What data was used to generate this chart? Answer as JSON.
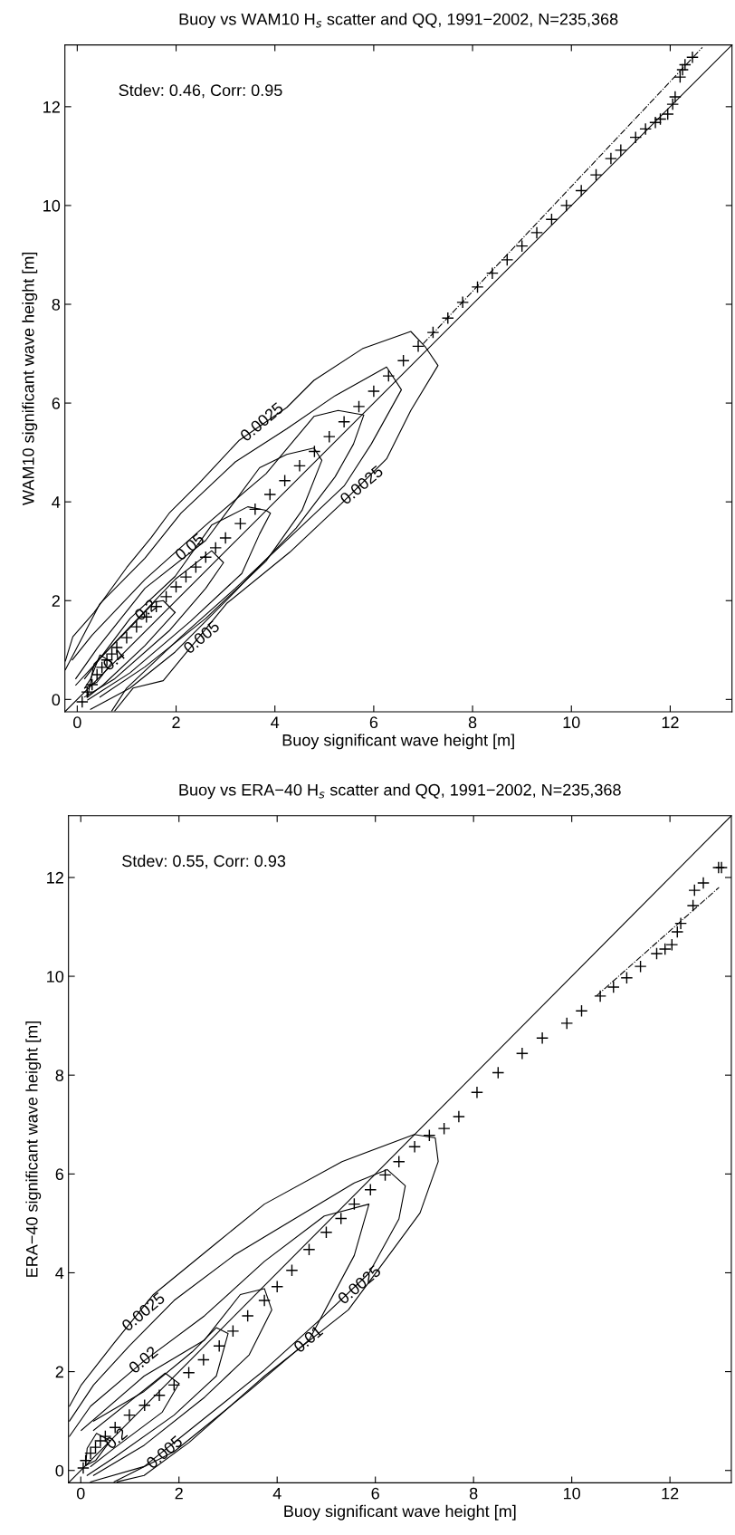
{
  "chart_data": [
    {
      "type": "scatter",
      "title": "Buoy vs WAM10 H$_{s}$ scatter and QQ, 1991−2002, N=235,368",
      "xlabel": "Buoy significant wave height [m]",
      "ylabel": "WAM10 significant wave height [m]",
      "xlim": [
        -0.25,
        13.25
      ],
      "ylim": [
        -0.25,
        13.25
      ],
      "xticks": [
        0,
        2,
        4,
        6,
        8,
        10,
        12
      ],
      "yticks": [
        0,
        2,
        4,
        6,
        8,
        10,
        12
      ],
      "grid": false,
      "legend": false,
      "annotations": [
        "Stdev: 0.46, Corr: 0.95",
        {
          "text": "0.0025",
          "x": 3.75,
          "y": 5.6
        },
        {
          "text": "0.0025",
          "x": 5.77,
          "y": 4.32
        },
        {
          "text": "0.05",
          "x": 2.29,
          "y": 3.07
        },
        {
          "text": "0.2",
          "x": 1.4,
          "y": 1.79
        },
        {
          "text": "0.4",
          "x": 0.76,
          "y": 0.78
        },
        {
          "text": "0.005",
          "x": 2.53,
          "y": 1.24
        }
      ],
      "series": [
        {
          "type": "line",
          "color": "#000000",
          "line_style": "solid",
          "x": [
            -0.25,
            13.25
          ],
          "values": [
            -0.25,
            13.25
          ]
        },
        {
          "type": "line",
          "color": "#000000",
          "line_style": "dashdot",
          "x": [
            7.0,
            12.65
          ],
          "values": [
            7.2,
            13.2
          ]
        },
        {
          "type": "line",
          "color": "#000000",
          "line_style": "solid",
          "x": [
            -0.24,
            -0.09,
            0.34,
            1.0,
            1.5,
            1.86,
            2.47,
            3.27,
            4.24,
            4.79,
            5.77,
            6.75,
            7.05,
            7.3,
            6.75,
            6.26,
            5.34,
            4.3,
            3.02,
            1.74,
            1.13,
            0.76
          ],
          "values": [
            0.78,
            1.27,
            1.76,
            2.67,
            3.28,
            3.77,
            4.38,
            5.24,
            5.91,
            6.46,
            7.1,
            7.45,
            7.13,
            6.76,
            5.85,
            4.87,
            3.96,
            2.98,
            1.94,
            0.38,
            0.23,
            -0.23
          ]
        },
        {
          "type": "line",
          "color": "#000000",
          "line_style": "solid",
          "x": [
            -0.24,
            0.46,
            1.37,
            2.1,
            3.2,
            4.24,
            5.22,
            6.26,
            6.56,
            5.95,
            5.4,
            4.49,
            3.2,
            2.1,
            1.0,
            0.7
          ],
          "values": [
            0.6,
            1.94,
            2.86,
            3.77,
            4.81,
            5.48,
            6.15,
            6.73,
            6.27,
            5.17,
            4.32,
            3.46,
            2.25,
            1.27,
            0.23,
            -0.23
          ]
        },
        {
          "type": "line",
          "color": "#000000",
          "line_style": "solid",
          "x": [
            -0.1,
            0.3,
            1.37,
            2.6,
            3.82,
            4.79,
            5.28,
            5.8,
            5.59,
            5.22,
            4.43,
            3.2,
            1.98,
            1.07,
            0.27
          ],
          "values": [
            0.8,
            1.3,
            2.43,
            3.53,
            4.57,
            5.73,
            5.85,
            5.76,
            5.17,
            4.51,
            3.47,
            2.19,
            0.96,
            0.23,
            -0.2
          ]
        },
        {
          "type": "line",
          "color": "#000000",
          "line_style": "solid",
          "x": [
            -0.03,
            0.4,
            1.37,
            2.6,
            3.69,
            4.24,
            4.79,
            4.95,
            4.55,
            3.82,
            2.6,
            1.37,
            0.46
          ],
          "values": [
            0.42,
            1.03,
            2.25,
            3.22,
            4.69,
            4.96,
            5.09,
            4.84,
            3.83,
            2.8,
            1.64,
            0.66,
            0.05
          ]
        },
        {
          "type": "line",
          "color": "#000000",
          "line_style": "solid",
          "x": [
            0.15,
            1.07,
            1.98,
            2.72,
            3.45,
            3.82,
            3.91,
            3.69,
            3.33,
            2.29,
            1.07,
            0.21
          ],
          "values": [
            0.42,
            1.64,
            2.49,
            3.53,
            3.9,
            3.83,
            3.77,
            3.35,
            2.55,
            1.58,
            0.54,
            -0.01
          ]
        },
        {
          "type": "line",
          "color": "#000000",
          "line_style": "solid",
          "x": [
            -0.03,
            0.76,
            1.98,
            2.72,
            2.96,
            2.6,
            1.86,
            0.76,
            0.15
          ],
          "values": [
            0.29,
            1.15,
            2.43,
            3.01,
            2.77,
            2.25,
            1.39,
            0.42,
            0.05
          ]
        },
        {
          "type": "line",
          "color": "#000000",
          "line_style": "solid",
          "x": [
            0.21,
            0.34,
            0.95,
            1.56,
            1.74,
            1.98
          ],
          "values": [
            0.05,
            0.72,
            1.33,
            1.97,
            2.0,
            1.76
          ]
        },
        {
          "type": "line",
          "color": "#000000",
          "line_style": "solid",
          "x": [
            0.21,
            0.52,
            1.37,
            1.98
          ],
          "values": [
            0.05,
            0.29,
            1.09,
            1.76
          ]
        },
        {
          "type": "line",
          "color": "#000000",
          "line_style": "solid",
          "x": [
            0.15,
            0.27,
            0.46,
            0.7
          ],
          "values": [
            0.23,
            0.42,
            0.9,
            0.75
          ]
        },
        {
          "type": "line",
          "color": "#000000",
          "line_style": "solid",
          "x": [
            0.15,
            0.4,
            0.7
          ],
          "values": [
            0.23,
            0.35,
            0.75
          ]
        },
        {
          "color": "#000000",
          "marker": "cross",
          "x": [
            0.1,
            0.2,
            0.3,
            0.4,
            0.5,
            0.6,
            0.7,
            0.8,
            1.0,
            1.2,
            1.4,
            1.6,
            1.8,
            2.0,
            2.2,
            2.4,
            2.6,
            2.8,
            3.0,
            3.3,
            3.6,
            3.9,
            4.2,
            4.5,
            4.8,
            5.1,
            5.4,
            5.7,
            6.0,
            6.3,
            6.6,
            6.9,
            7.2,
            7.5,
            7.8,
            8.1,
            8.4,
            8.7,
            9.0,
            9.3,
            9.6,
            9.9,
            10.2,
            10.5,
            10.8,
            11.0,
            11.3,
            11.5,
            11.7,
            11.8,
            11.95,
            12.05,
            12.1,
            12.2,
            12.25,
            12.3,
            12.45
          ],
          "values": [
            -0.05,
            0.15,
            0.3,
            0.5,
            0.65,
            0.8,
            0.92,
            1.05,
            1.25,
            1.47,
            1.67,
            1.88,
            2.08,
            2.28,
            2.48,
            2.68,
            2.88,
            3.07,
            3.27,
            3.56,
            3.85,
            4.15,
            4.43,
            4.73,
            5.02,
            5.32,
            5.62,
            5.93,
            6.24,
            6.55,
            6.86,
            7.15,
            7.43,
            7.72,
            8.04,
            8.35,
            8.63,
            8.9,
            9.18,
            9.45,
            9.72,
            10.0,
            10.3,
            10.62,
            10.95,
            11.12,
            11.38,
            11.55,
            11.68,
            11.75,
            11.85,
            12.05,
            12.2,
            12.6,
            12.75,
            12.85,
            13.0
          ]
        }
      ]
    },
    {
      "type": "scatter",
      "title": "Buoy vs ERA−40 H$_{s}$ scatter and QQ, 1991−2002, N=235,368",
      "xlabel": "Buoy significant wave height [m]",
      "ylabel": "ERA−40 significant wave height [m]",
      "xlim": [
        -0.25,
        13.25
      ],
      "ylim": [
        -0.25,
        13.25
      ],
      "xticks": [
        0,
        2,
        4,
        6,
        8,
        10,
        12
      ],
      "yticks": [
        0,
        2,
        4,
        6,
        8,
        10,
        12
      ],
      "grid": false,
      "legend": false,
      "annotations": [
        "Stdev: 0.55, Corr: 0.93",
        {
          "text": "0.0025",
          "x": 1.29,
          "y": 3.19
        },
        {
          "text": "0.02",
          "x": 1.29,
          "y": 2.22
        },
        {
          "text": "0.2",
          "x": 0.74,
          "y": 0.63
        },
        {
          "text": "0.005",
          "x": 1.72,
          "y": 0.35
        },
        {
          "text": "0.01",
          "x": 4.65,
          "y": 2.64
        },
        {
          "text": "0.0025",
          "x": 5.69,
          "y": 3.74
        }
      ],
      "series": [
        {
          "type": "line",
          "color": "#000000",
          "line_style": "solid",
          "x": [
            -0.25,
            13.25
          ],
          "values": [
            -0.25,
            13.25
          ]
        },
        {
          "type": "line",
          "color": "#000000",
          "line_style": "dashdot",
          "x": [
            10.5,
            13.0
          ],
          "values": [
            9.6,
            11.8
          ]
        },
        {
          "type": "line",
          "color": "#000000",
          "line_style": "solid",
          "x": [
            -0.23,
            0.01,
            0.68,
            1.48,
            2.76,
            3.74,
            5.32,
            6.79,
            7.22,
            7.28,
            6.91,
            6.36,
            5.45,
            3.74,
            2.21,
            1.29,
            0.74
          ],
          "values": [
            1.3,
            1.73,
            2.58,
            3.56,
            4.6,
            5.39,
            6.25,
            6.8,
            6.73,
            6.25,
            5.21,
            4.47,
            3.25,
            1.91,
            0.57,
            -0.1,
            -0.23
          ]
        },
        {
          "type": "line",
          "color": "#000000",
          "line_style": "solid",
          "x": [
            -0.23,
            0.26,
            0.99,
            1.9,
            3.13,
            4.35,
            5.57,
            6.24,
            6.61,
            6.48,
            5.87,
            4.96,
            3.74,
            2.21,
            1.29,
            0.2
          ],
          "values": [
            1.0,
            1.73,
            2.52,
            3.44,
            4.36,
            5.09,
            5.82,
            6.09,
            5.76,
            5.09,
            3.99,
            3.13,
            2.03,
            0.81,
            0.08,
            -0.23
          ]
        },
        {
          "type": "line",
          "color": "#000000",
          "line_style": "solid",
          "x": [
            -0.23,
            0.2,
            1.29,
            2.52,
            3.74,
            4.96,
            5.87,
            5.57,
            4.65,
            3.43,
            1.9,
            0.68
          ],
          "values": [
            0.69,
            1.3,
            2.22,
            3.13,
            4.23,
            5.15,
            5.39,
            4.35,
            2.64,
            1.61,
            0.38,
            -0.23
          ]
        },
        {
          "type": "line",
          "color": "#000000",
          "line_style": "solid",
          "x": [
            0.01,
            1.29,
            2.52,
            3.25,
            3.74,
            3.89,
            3.43,
            2.52,
            1.29,
            0.26
          ],
          "values": [
            0.81,
            1.91,
            2.64,
            3.56,
            3.68,
            3.25,
            2.34,
            1.48,
            0.51,
            -0.1
          ]
        },
        {
          "type": "line",
          "color": "#000000",
          "line_style": "solid",
          "x": [
            0.26,
            1.29,
            2.27,
            2.76,
            3.0,
            2.76,
            1.9,
            0.68,
            0.13
          ],
          "values": [
            1.0,
            1.6,
            2.4,
            2.89,
            2.77,
            1.91,
            1.12,
            0.26,
            -0.1
          ]
        },
        {
          "type": "line",
          "color": "#000000",
          "line_style": "solid",
          "x": [
            0.26,
            1.72,
            2.0
          ],
          "values": [
            0.81,
            1.97,
            1.76
          ]
        },
        {
          "type": "line",
          "color": "#000000",
          "line_style": "solid",
          "x": [
            0.2,
            0.68,
            1.66,
            2.0
          ],
          "values": [
            0.08,
            0.45,
            1.18,
            1.76
          ]
        },
        {
          "type": "line",
          "color": "#000000",
          "line_style": "solid",
          "x": [
            0.1,
            0.13,
            0.32,
            0.6
          ],
          "values": [
            0.1,
            0.45,
            0.75,
            0.6
          ]
        },
        {
          "type": "line",
          "color": "#000000",
          "line_style": "solid",
          "x": [
            0.1,
            0.3,
            0.6
          ],
          "values": [
            0.1,
            0.2,
            0.6
          ]
        },
        {
          "color": "#000000",
          "marker": "cross",
          "x": [
            0.05,
            0.1,
            0.2,
            0.3,
            0.4,
            0.5,
            0.7,
            0.99,
            1.3,
            1.6,
            1.9,
            2.2,
            2.5,
            2.82,
            3.1,
            3.4,
            3.74,
            4.0,
            4.3,
            4.65,
            5.0,
            5.3,
            5.57,
            5.9,
            6.2,
            6.48,
            6.8,
            7.1,
            7.4,
            7.7,
            8.07,
            8.5,
            8.99,
            9.4,
            9.9,
            10.2,
            10.58,
            10.85,
            11.12,
            11.4,
            11.73,
            11.9,
            12.04,
            12.15,
            12.22,
            12.47,
            12.5,
            12.68,
            12.99,
            13.05
          ],
          "values": [
            0.05,
            0.2,
            0.35,
            0.47,
            0.6,
            0.69,
            0.87,
            1.12,
            1.32,
            1.52,
            1.73,
            1.98,
            2.24,
            2.52,
            2.82,
            3.13,
            3.44,
            3.72,
            4.05,
            4.47,
            4.82,
            5.1,
            5.39,
            5.68,
            5.98,
            6.25,
            6.55,
            6.78,
            6.92,
            7.16,
            7.65,
            8.05,
            8.44,
            8.75,
            9.05,
            9.3,
            9.6,
            9.78,
            9.97,
            10.2,
            10.46,
            10.55,
            10.64,
            10.9,
            11.07,
            11.43,
            11.74,
            11.89,
            12.2,
            12.2
          ]
        }
      ]
    }
  ]
}
